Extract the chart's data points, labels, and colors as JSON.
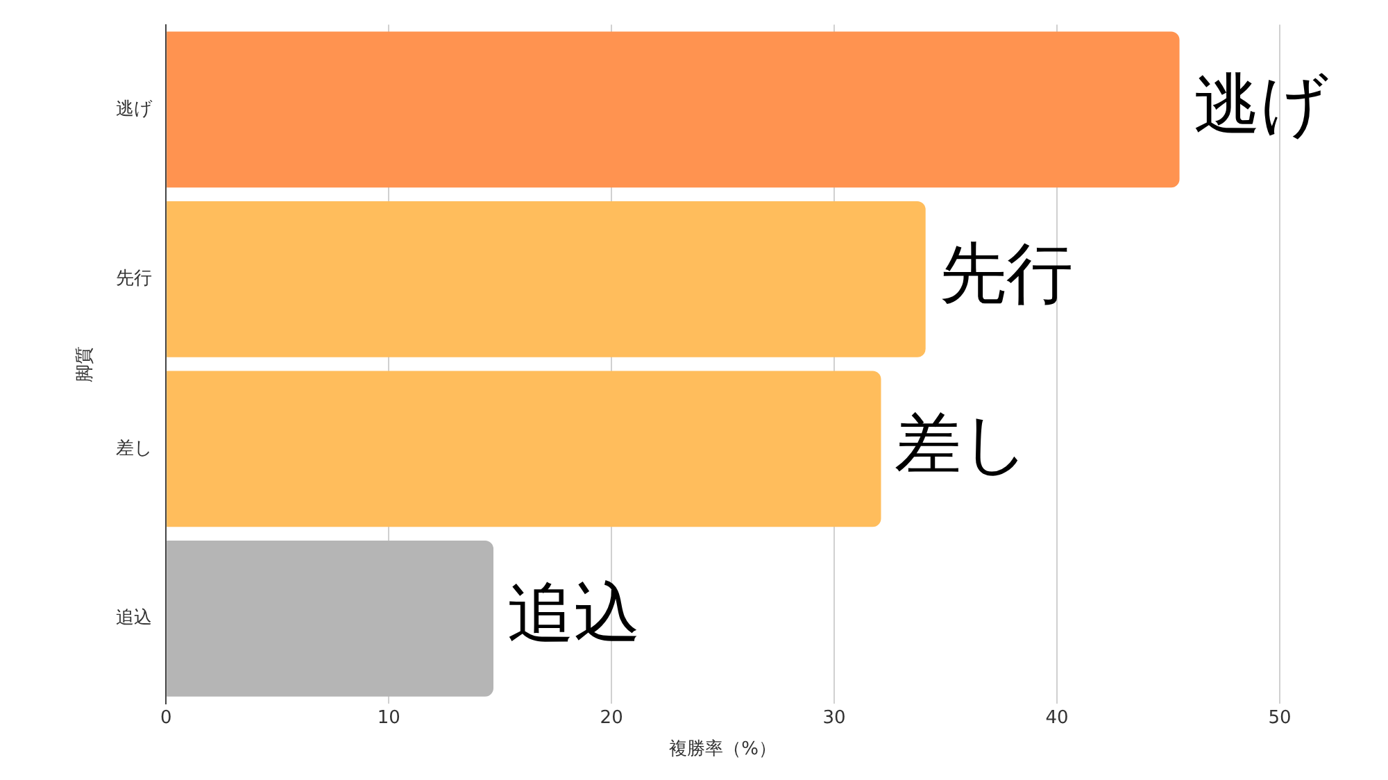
{
  "chart_data": {
    "type": "bar",
    "orientation": "horizontal",
    "categories": [
      "逃げ",
      "先行",
      "差し",
      "追込"
    ],
    "values": [
      45.5,
      34.1,
      32.1,
      14.7
    ],
    "colors": [
      "#ff9350",
      "#ffbd5c",
      "#ffbd5c",
      "#b5b5b5"
    ],
    "xlim": [
      0,
      50
    ],
    "xticks": [
      0,
      10,
      20,
      30,
      40,
      50
    ],
    "xlabel": "複勝率（%）",
    "ylabel": "脚質",
    "grid": "x",
    "legend": false
  }
}
